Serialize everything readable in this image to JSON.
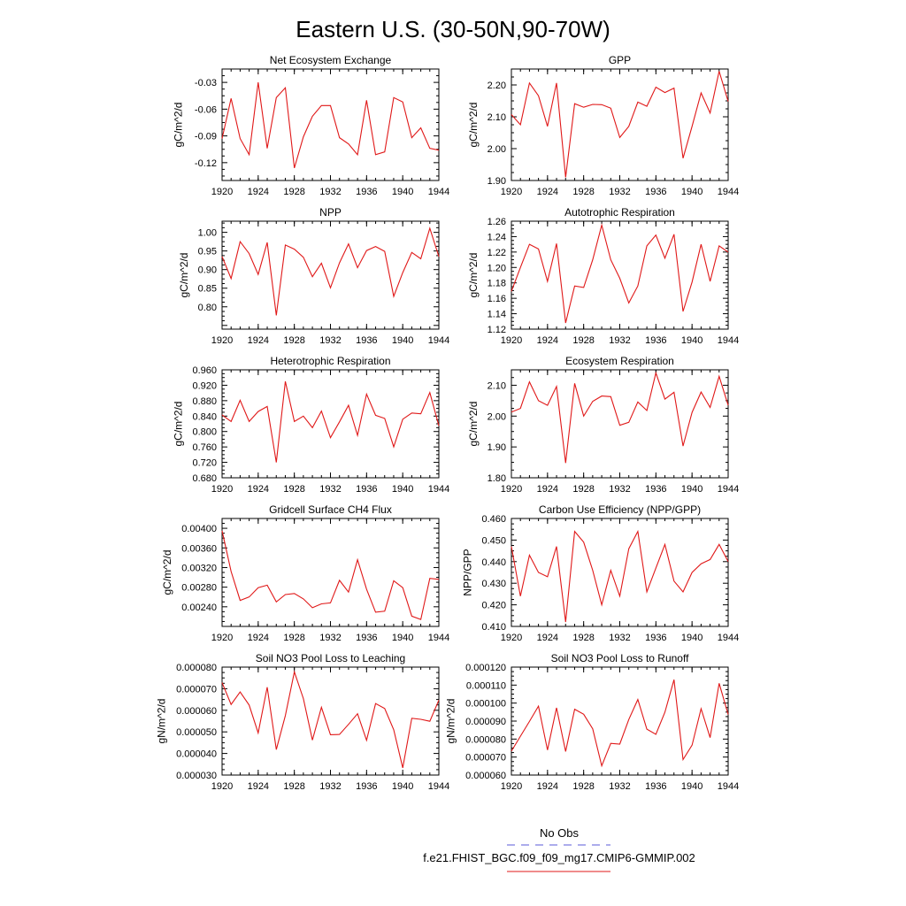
{
  "page_title": "Eastern U.S. (30-50N,90-70W)",
  "legend": {
    "obs_label": "No Obs",
    "obs_color": "#5a5ad8",
    "model_label": "f.e21.FHIST_BGC.f09_f09_mg17.CMIP6-GMMIP.002",
    "model_color": "#e01818"
  },
  "chart_data": [
    {
      "type": "line",
      "title": "Net Ecosystem Exchange",
      "ylabel": "gC/m^2/d",
      "xlim": [
        1920,
        1944
      ],
      "ylim": [
        -0.14,
        -0.015
      ],
      "yticks": [
        "-0.03",
        "-0.06",
        "-0.09",
        "-0.12"
      ],
      "xticks": [
        "1920",
        "1924",
        "1928",
        "1932",
        "1936",
        "1940",
        "1944"
      ],
      "x": [
        1920,
        1921,
        1922,
        1923,
        1924,
        1925,
        1926,
        1927,
        1928,
        1929,
        1930,
        1931,
        1932,
        1933,
        1934,
        1935,
        1936,
        1937,
        1938,
        1939,
        1940,
        1941,
        1942,
        1943,
        1944
      ],
      "series": [
        {
          "values": [
            -0.093,
            -0.048,
            -0.093,
            -0.111,
            -0.03,
            -0.104,
            -0.047,
            -0.036,
            -0.126,
            -0.091,
            -0.068,
            -0.056,
            -0.056,
            -0.092,
            -0.099,
            -0.111,
            -0.05,
            -0.111,
            -0.108,
            -0.047,
            -0.052,
            -0.092,
            -0.081,
            -0.104,
            -0.106
          ]
        }
      ]
    },
    {
      "type": "line",
      "title": "GPP",
      "ylabel": "gC/m^2/d",
      "xlim": [
        1920,
        1944
      ],
      "ylim": [
        1.9,
        2.25
      ],
      "yticks": [
        "2.20",
        "2.10",
        "2.00",
        "1.90"
      ],
      "xticks": [
        "1920",
        "1924",
        "1928",
        "1932",
        "1936",
        "1940",
        "1944"
      ],
      "x": [
        1920,
        1921,
        1922,
        1923,
        1924,
        1925,
        1926,
        1927,
        1928,
        1929,
        1930,
        1931,
        1932,
        1933,
        1934,
        1935,
        1936,
        1937,
        1938,
        1939,
        1940,
        1941,
        1942,
        1943,
        1944
      ],
      "series": [
        {
          "values": [
            2.107,
            2.075,
            2.206,
            2.166,
            2.07,
            2.206,
            1.91,
            2.141,
            2.13,
            2.139,
            2.138,
            2.127,
            2.035,
            2.07,
            2.146,
            2.133,
            2.193,
            2.176,
            2.19,
            1.97,
            2.07,
            2.175,
            2.112,
            2.243,
            2.148
          ]
        }
      ]
    },
    {
      "type": "line",
      "title": "NPP",
      "ylabel": "gC/m^2/d",
      "xlim": [
        1920,
        1944
      ],
      "ylim": [
        0.74,
        1.03
      ],
      "yticks": [
        "1.00",
        "0.95",
        "0.90",
        "0.85",
        "0.80"
      ],
      "xticks": [
        "1920",
        "1924",
        "1928",
        "1932",
        "1936",
        "1940",
        "1944"
      ],
      "x": [
        1920,
        1921,
        1922,
        1923,
        1924,
        1925,
        1926,
        1927,
        1928,
        1929,
        1930,
        1931,
        1932,
        1933,
        1934,
        1935,
        1936,
        1937,
        1938,
        1939,
        1940,
        1941,
        1942,
        1943,
        1944
      ],
      "series": [
        {
          "values": [
            0.935,
            0.876,
            0.975,
            0.943,
            0.887,
            0.973,
            0.777,
            0.966,
            0.955,
            0.933,
            0.881,
            0.917,
            0.851,
            0.918,
            0.969,
            0.905,
            0.951,
            0.962,
            0.949,
            0.828,
            0.892,
            0.946,
            0.929,
            1.011,
            0.935
          ]
        }
      ]
    },
    {
      "type": "line",
      "title": "Autotrophic Respiration",
      "ylabel": "gC/m^2/d",
      "xlim": [
        1920,
        1944
      ],
      "ylim": [
        1.12,
        1.26
      ],
      "yticks": [
        "1.26",
        "1.24",
        "1.22",
        "1.20",
        "1.18",
        "1.16",
        "1.14",
        "1.12"
      ],
      "xticks": [
        "1920",
        "1924",
        "1928",
        "1932",
        "1936",
        "1940",
        "1944"
      ],
      "x": [
        1920,
        1921,
        1922,
        1923,
        1924,
        1925,
        1926,
        1927,
        1928,
        1929,
        1930,
        1931,
        1932,
        1933,
        1934,
        1935,
        1936,
        1937,
        1938,
        1939,
        1940,
        1941,
        1942,
        1943,
        1944
      ],
      "series": [
        {
          "values": [
            1.169,
            1.2,
            1.23,
            1.224,
            1.182,
            1.231,
            1.128,
            1.176,
            1.174,
            1.21,
            1.255,
            1.21,
            1.186,
            1.154,
            1.176,
            1.228,
            1.242,
            1.212,
            1.243,
            1.143,
            1.181,
            1.23,
            1.182,
            1.228,
            1.22
          ]
        }
      ]
    },
    {
      "type": "line",
      "title": "Heterotrophic Respiration",
      "ylabel": "gC/m^2/d",
      "xlim": [
        1920,
        1944
      ],
      "ylim": [
        0.68,
        0.96
      ],
      "yticks": [
        "0.960",
        "0.920",
        "0.880",
        "0.840",
        "0.800",
        "0.760",
        "0.720",
        "0.680"
      ],
      "xticks": [
        "1920",
        "1924",
        "1928",
        "1932",
        "1936",
        "1940",
        "1944"
      ],
      "x": [
        1920,
        1921,
        1922,
        1923,
        1924,
        1925,
        1926,
        1927,
        1928,
        1929,
        1930,
        1931,
        1932,
        1933,
        1934,
        1935,
        1936,
        1937,
        1938,
        1939,
        1940,
        1941,
        1942,
        1943,
        1944
      ],
      "series": [
        {
          "values": [
            0.843,
            0.826,
            0.881,
            0.826,
            0.852,
            0.865,
            0.72,
            0.93,
            0.826,
            0.84,
            0.81,
            0.853,
            0.784,
            0.825,
            0.868,
            0.79,
            0.897,
            0.842,
            0.834,
            0.76,
            0.832,
            0.848,
            0.846,
            0.901,
            0.815
          ]
        }
      ]
    },
    {
      "type": "line",
      "title": "Ecosystem Respiration",
      "ylabel": "gC/m^2/d",
      "xlim": [
        1920,
        1944
      ],
      "ylim": [
        1.8,
        2.15
      ],
      "yticks": [
        "2.10",
        "2.00",
        "1.90",
        "1.80"
      ],
      "xticks": [
        "1920",
        "1924",
        "1928",
        "1932",
        "1936",
        "1940",
        "1944"
      ],
      "x": [
        1920,
        1921,
        1922,
        1923,
        1924,
        1925,
        1926,
        1927,
        1928,
        1929,
        1930,
        1931,
        1932,
        1933,
        1934,
        1935,
        1936,
        1937,
        1938,
        1939,
        1940,
        1941,
        1942,
        1943,
        1944
      ],
      "series": [
        {
          "values": [
            2.013,
            2.025,
            2.111,
            2.05,
            2.035,
            2.096,
            1.848,
            2.106,
            2.0,
            2.048,
            2.065,
            2.063,
            1.97,
            1.98,
            2.046,
            2.018,
            2.14,
            2.055,
            2.077,
            1.903,
            2.012,
            2.078,
            2.028,
            2.129,
            2.035
          ]
        }
      ]
    },
    {
      "type": "line",
      "title": "Gridcell Surface CH4 Flux",
      "ylabel": "gC/m^2/d",
      "xlim": [
        1920,
        1944
      ],
      "ylim": [
        0.002,
        0.0042
      ],
      "yticks": [
        "0.00400",
        "0.00360",
        "0.00320",
        "0.00280",
        "0.00240"
      ],
      "xticks": [
        "1920",
        "1924",
        "1928",
        "1932",
        "1936",
        "1940",
        "1944"
      ],
      "x": [
        1920,
        1921,
        1922,
        1923,
        1924,
        1925,
        1926,
        1927,
        1928,
        1929,
        1930,
        1931,
        1932,
        1933,
        1934,
        1935,
        1936,
        1937,
        1938,
        1939,
        1940,
        1941,
        1942,
        1943,
        1944
      ],
      "series": [
        {
          "values": [
            0.00395,
            0.00312,
            0.00253,
            0.0026,
            0.00279,
            0.00284,
            0.0025,
            0.00265,
            0.00267,
            0.00256,
            0.00238,
            0.00246,
            0.00248,
            0.00294,
            0.0027,
            0.00336,
            0.00276,
            0.00229,
            0.00231,
            0.00293,
            0.00279,
            0.00221,
            0.00214,
            0.00298,
            0.00296
          ]
        }
      ]
    },
    {
      "type": "line",
      "title": "Carbon Use Efficiency (NPP/GPP)",
      "ylabel": "NPP/GPP",
      "xlim": [
        1920,
        1944
      ],
      "ylim": [
        0.41,
        0.46
      ],
      "yticks": [
        "0.460",
        "0.450",
        "0.440",
        "0.430",
        "0.420",
        "0.410"
      ],
      "xticks": [
        "1920",
        "1924",
        "1928",
        "1932",
        "1936",
        "1940",
        "1944"
      ],
      "x": [
        1920,
        1921,
        1922,
        1923,
        1924,
        1925,
        1926,
        1927,
        1928,
        1929,
        1930,
        1931,
        1932,
        1933,
        1934,
        1935,
        1936,
        1937,
        1938,
        1939,
        1940,
        1941,
        1942,
        1943,
        1944
      ],
      "series": [
        {
          "values": [
            0.447,
            0.424,
            0.443,
            0.435,
            0.433,
            0.447,
            0.412,
            0.454,
            0.449,
            0.436,
            0.42,
            0.436,
            0.424,
            0.446,
            0.454,
            0.426,
            0.437,
            0.448,
            0.431,
            0.426,
            0.435,
            0.439,
            0.441,
            0.448,
            0.44
          ]
        }
      ]
    },
    {
      "type": "line",
      "title": "Soil NO3 Pool Loss to Leaching",
      "ylabel": "gN/m^2/d",
      "xlim": [
        1920,
        1944
      ],
      "ylim": [
        3e-05,
        8e-05
      ],
      "yticks": [
        "0.000080",
        "0.000070",
        "0.000060",
        "0.000050",
        "0.000040",
        "0.000030"
      ],
      "xticks": [
        "1920",
        "1924",
        "1928",
        "1932",
        "1936",
        "1940",
        "1944"
      ],
      "x": [
        1920,
        1921,
        1922,
        1923,
        1924,
        1925,
        1926,
        1927,
        1928,
        1929,
        1930,
        1931,
        1932,
        1933,
        1934,
        1935,
        1936,
        1937,
        1938,
        1939,
        1940,
        1941,
        1942,
        1943,
        1944
      ],
      "series": [
        {
          "values": [
            7.28e-05,
            6.27e-05,
            6.85e-05,
            6.24e-05,
            4.95e-05,
            7.07e-05,
            4.18e-05,
            5.75e-05,
            7.78e-05,
            6.54e-05,
            4.62e-05,
            6.14e-05,
            4.87e-05,
            4.88e-05,
            5.35e-05,
            5.84e-05,
            4.61e-05,
            6.31e-05,
            6.08e-05,
            5.1e-05,
            3.33e-05,
            5.63e-05,
            5.58e-05,
            5.49e-05,
            6.47e-05
          ]
        }
      ]
    },
    {
      "type": "line",
      "title": "Soil NO3 Pool Loss to Runoff",
      "ylabel": "gN/m^2/d",
      "xlim": [
        1920,
        1944
      ],
      "ylim": [
        6e-05,
        0.00012
      ],
      "yticks": [
        "0.000120",
        "0.000110",
        "0.000100",
        "0.000090",
        "0.000080",
        "0.000070",
        "0.000060"
      ],
      "xticks": [
        "1920",
        "1924",
        "1928",
        "1932",
        "1936",
        "1940",
        "1944"
      ],
      "x": [
        1920,
        1921,
        1922,
        1923,
        1924,
        1925,
        1926,
        1927,
        1928,
        1929,
        1930,
        1931,
        1932,
        1933,
        1934,
        1935,
        1936,
        1937,
        1938,
        1939,
        1940,
        1941,
        1942,
        1943,
        1944
      ],
      "series": [
        {
          "values": [
            7.33e-05,
            8.16e-05,
            8.98e-05,
            9.83e-05,
            7.39e-05,
            9.74e-05,
            7.31e-05,
            9.66e-05,
            9.38e-05,
            8.57e-05,
            6.51e-05,
            7.76e-05,
            7.72e-05,
            9.09e-05,
            0.000102,
            8.55e-05,
            8.26e-05,
            9.49e-05,
            0.000113,
            6.86e-05,
            7.66e-05,
            9.69e-05,
            8.08e-05,
            0.000111,
            9.37e-05
          ]
        }
      ]
    }
  ]
}
